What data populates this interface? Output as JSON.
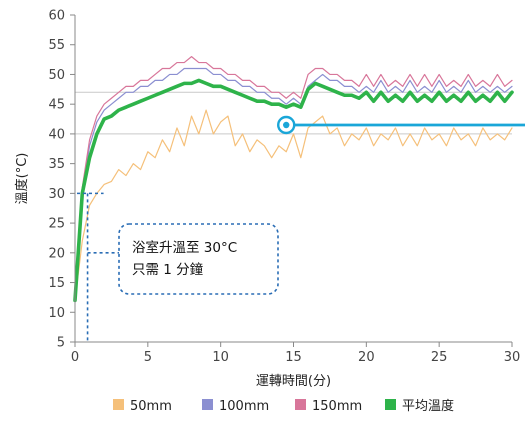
{
  "chart_data": {
    "type": "line",
    "xlabel": "運轉時間(分)",
    "ylabel": "溫度(°C)",
    "xlim": [
      0,
      30
    ],
    "ylim": [
      5,
      60
    ],
    "xticks": [
      0,
      5,
      10,
      15,
      20,
      25,
      30
    ],
    "yticks": [
      5,
      10,
      15,
      20,
      25,
      30,
      35,
      40,
      45,
      50,
      55,
      60
    ],
    "grid": false,
    "reference_lines": [
      {
        "y": 47,
        "color": "#c9c9c9"
      },
      {
        "y": 40,
        "color": "#c9c9c9"
      }
    ],
    "legend_position": "bottom",
    "series": [
      {
        "name": "50mm",
        "color": "#f5c07a",
        "x": [
          0,
          0.5,
          1,
          1.5,
          2,
          2.5,
          3,
          3.5,
          4,
          4.5,
          5,
          5.5,
          6,
          6.5,
          7,
          7.5,
          8,
          8.5,
          9,
          9.5,
          10,
          10.5,
          11,
          11.5,
          12,
          12.5,
          13,
          13.5,
          14,
          14.5,
          15,
          15.5,
          16,
          16.5,
          17,
          17.5,
          18,
          18.5,
          19,
          19.5,
          20,
          20.5,
          21,
          21.5,
          22,
          22.5,
          23,
          23.5,
          24,
          24.5,
          25,
          25.5,
          26,
          26.5,
          27,
          27.5,
          28,
          28.5,
          29,
          29.5,
          30
        ],
        "values": [
          12,
          22,
          28,
          30,
          31.5,
          32,
          34,
          33,
          35,
          34,
          37,
          36,
          39,
          37,
          41,
          38,
          43,
          40,
          44,
          40,
          42,
          43,
          38,
          40,
          37,
          39,
          38,
          36,
          38,
          37,
          40,
          36,
          41,
          42,
          43,
          40,
          41,
          38,
          40,
          39,
          41,
          38,
          40,
          39,
          41,
          38,
          40,
          38,
          41,
          39,
          40,
          38,
          41,
          39,
          40,
          38,
          41,
          39,
          40,
          39,
          41
        ]
      },
      {
        "name": "100mm",
        "color": "#8b8fd1",
        "x": [
          0,
          0.5,
          1,
          1.5,
          2,
          2.5,
          3,
          3.5,
          4,
          4.5,
          5,
          5.5,
          6,
          6.5,
          7,
          7.5,
          8,
          8.5,
          9,
          9.5,
          10,
          10.5,
          11,
          11.5,
          12,
          12.5,
          13,
          13.5,
          14,
          14.5,
          15,
          15.5,
          16,
          16.5,
          17,
          17.5,
          18,
          18.5,
          19,
          19.5,
          20,
          20.5,
          21,
          21.5,
          22,
          22.5,
          23,
          23.5,
          24,
          24.5,
          25,
          25.5,
          26,
          26.5,
          27,
          27.5,
          28,
          28.5,
          29,
          29.5,
          30
        ],
        "values": [
          14,
          30,
          38,
          42,
          44,
          45,
          46,
          47,
          47,
          48,
          48,
          49,
          49,
          50,
          50,
          51,
          51,
          51,
          51,
          50,
          50,
          49,
          49,
          48,
          48,
          47,
          47,
          46,
          46,
          45,
          46,
          45,
          48,
          49,
          50,
          49,
          49,
          48,
          48,
          47,
          48,
          47,
          49,
          47,
          48,
          47,
          49,
          47,
          48,
          47,
          49,
          47,
          48,
          47,
          49,
          47,
          48,
          47,
          48,
          47,
          48
        ]
      },
      {
        "name": "150mm",
        "color": "#d8769a",
        "x": [
          0,
          0.5,
          1,
          1.5,
          2,
          2.5,
          3,
          3.5,
          4,
          4.5,
          5,
          5.5,
          6,
          6.5,
          7,
          7.5,
          8,
          8.5,
          9,
          9.5,
          10,
          10.5,
          11,
          11.5,
          12,
          12.5,
          13,
          13.5,
          14,
          14.5,
          15,
          15.5,
          16,
          16.5,
          17,
          17.5,
          18,
          18.5,
          19,
          19.5,
          20,
          20.5,
          21,
          21.5,
          22,
          22.5,
          23,
          23.5,
          24,
          24.5,
          25,
          25.5,
          26,
          26.5,
          27,
          27.5,
          28,
          28.5,
          29,
          29.5,
          30
        ],
        "values": [
          14,
          31,
          39,
          43,
          45,
          46,
          47,
          48,
          48,
          49,
          49,
          50,
          51,
          51,
          52,
          52,
          53,
          52,
          52,
          51,
          51,
          50,
          50,
          49,
          49,
          48,
          48,
          47,
          47,
          46,
          47,
          46,
          50,
          51,
          51,
          50,
          50,
          49,
          49,
          48,
          50,
          48,
          50,
          48,
          49,
          48,
          50,
          48,
          50,
          48,
          50,
          48,
          49,
          48,
          50,
          48,
          49,
          48,
          50,
          48,
          49
        ]
      },
      {
        "name": "平均溫度",
        "color": "#2eb34a",
        "x": [
          0,
          0.5,
          1,
          1.5,
          2,
          2.5,
          3,
          3.5,
          4,
          4.5,
          5,
          5.5,
          6,
          6.5,
          7,
          7.5,
          8,
          8.5,
          9,
          9.5,
          10,
          10.5,
          11,
          11.5,
          12,
          12.5,
          13,
          13.5,
          14,
          14.5,
          15,
          15.5,
          16,
          16.5,
          17,
          17.5,
          18,
          18.5,
          19,
          19.5,
          20,
          20.5,
          21,
          21.5,
          22,
          22.5,
          23,
          23.5,
          24,
          24.5,
          25,
          25.5,
          26,
          26.5,
          27,
          27.5,
          28,
          28.5,
          29,
          29.5,
          30
        ],
        "values": [
          12,
          30,
          36,
          40,
          42.5,
          43,
          44,
          44.5,
          45,
          45.5,
          46,
          46.5,
          47,
          47.5,
          48,
          48.5,
          48.5,
          49,
          48.5,
          48,
          48,
          47.5,
          47,
          46.5,
          46,
          45.5,
          45.5,
          45,
          45,
          44.5,
          45,
          44.5,
          47.5,
          48.5,
          48,
          47.5,
          47,
          46.5,
          46.5,
          46,
          47,
          45.5,
          47,
          45.5,
          46.5,
          45.5,
          47,
          45.5,
          46.5,
          45.5,
          47,
          45.5,
          46.5,
          45.5,
          47,
          45.5,
          46.5,
          45.5,
          47,
          45.5,
          47
        ]
      }
    ],
    "annotations": [
      {
        "text_lines": [
          "浴室升溫至 30°C",
          "只需 1 分鐘"
        ],
        "target_x": 1,
        "target_y": 30,
        "color": "#2a6db5",
        "style": "dashed"
      },
      {
        "marker_x": 14.5,
        "marker_y": 41.5,
        "color": "#1aa6d8",
        "style": "arrow-right"
      }
    ]
  }
}
